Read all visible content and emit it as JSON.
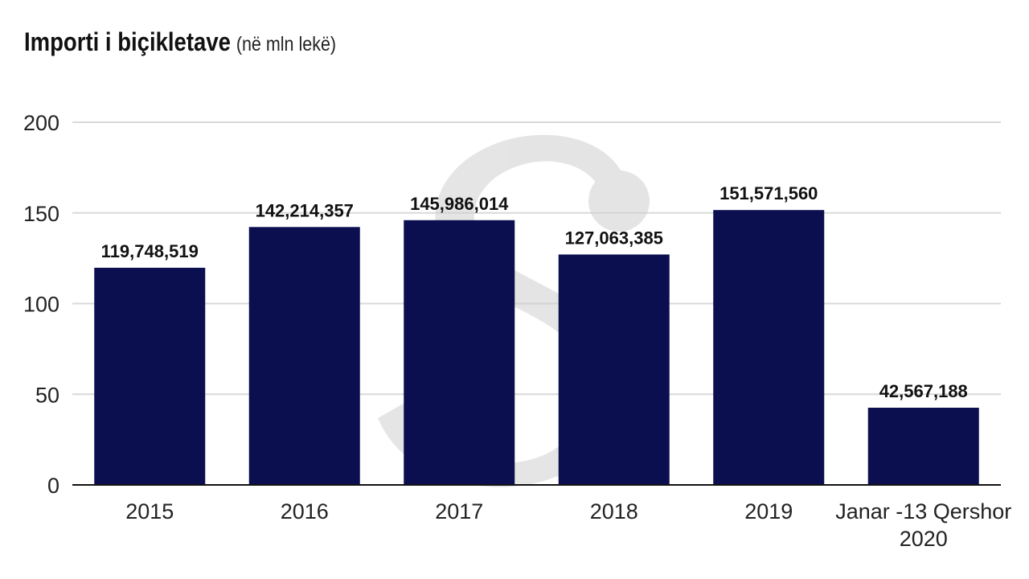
{
  "title": "Importi i biçikletave",
  "subtitle": "(në mln lekë)",
  "chart_data": {
    "type": "bar",
    "categories": [
      [
        "2015"
      ],
      [
        "2016"
      ],
      [
        "2017"
      ],
      [
        "2018"
      ],
      [
        "2019"
      ],
      [
        "Janar -13 Qershor",
        "2020"
      ]
    ],
    "values": [
      119.748519,
      142.214357,
      145.986014,
      127.063385,
      151.57156,
      42.567188
    ],
    "data_labels": [
      "119,748,519",
      "142,214,357",
      "145,986,014",
      "127,063,385",
      "151,571,560",
      "42,567,188"
    ],
    "ylim": [
      0,
      200
    ],
    "yticks": [
      "0",
      "50",
      "100",
      "150",
      "200"
    ],
    "ytick_values": [
      0,
      50,
      100,
      150,
      200
    ],
    "grid": true,
    "bar_color": "#0b0f4f",
    "grid_color": "#d9d9d9",
    "watermark_color": "#d4d4d4"
  }
}
